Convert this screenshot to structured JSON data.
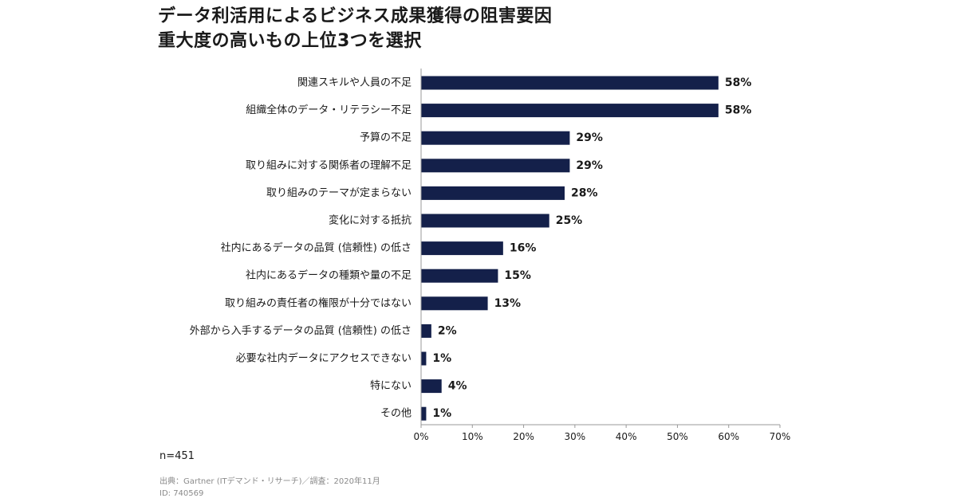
{
  "title_line1": "データ利活用によるビジネス成果獲得の阻害要因",
  "title_line2": "重大度の高いもの上位3つを選択",
  "sample_note": "n=451",
  "source_line": "出典：Gartner (ITデマンド・リサーチ)／調査：2020年11月",
  "id_line": "ID: 740569",
  "colors": {
    "bar": "#14204a",
    "axis": "#999999"
  },
  "chart_data": {
    "type": "bar",
    "orientation": "horizontal",
    "categories": [
      "関連スキルや人員の不足",
      "組織全体のデータ・リテラシー不足",
      "予算の不足",
      "取り組みに対する関係者の理解不足",
      "取り組みのテーマが定まらない",
      "変化に対する抵抗",
      "社内にあるデータの品質 (信頼性) の低さ",
      "社内にあるデータの種類や量の不足",
      "取り組みの責任者の権限が十分ではない",
      "外部から入手するデータの品質 (信頼性) の低さ",
      "必要な社内データにアクセスできない",
      "特にない",
      "その他"
    ],
    "values": [
      58,
      58,
      29,
      29,
      28,
      25,
      16,
      15,
      13,
      2,
      1,
      4,
      1
    ],
    "value_labels": [
      "58%",
      "58%",
      "29%",
      "29%",
      "28%",
      "25%",
      "16%",
      "15%",
      "13%",
      "2%",
      "1%",
      "4%",
      "1%"
    ],
    "x_ticks": [
      0,
      10,
      20,
      30,
      40,
      50,
      60,
      70
    ],
    "x_tick_labels": [
      "0%",
      "10%",
      "20%",
      "30%",
      "40%",
      "50%",
      "60%",
      "70%"
    ],
    "xlim": [
      0,
      70
    ],
    "grid": false,
    "legend": "none"
  }
}
